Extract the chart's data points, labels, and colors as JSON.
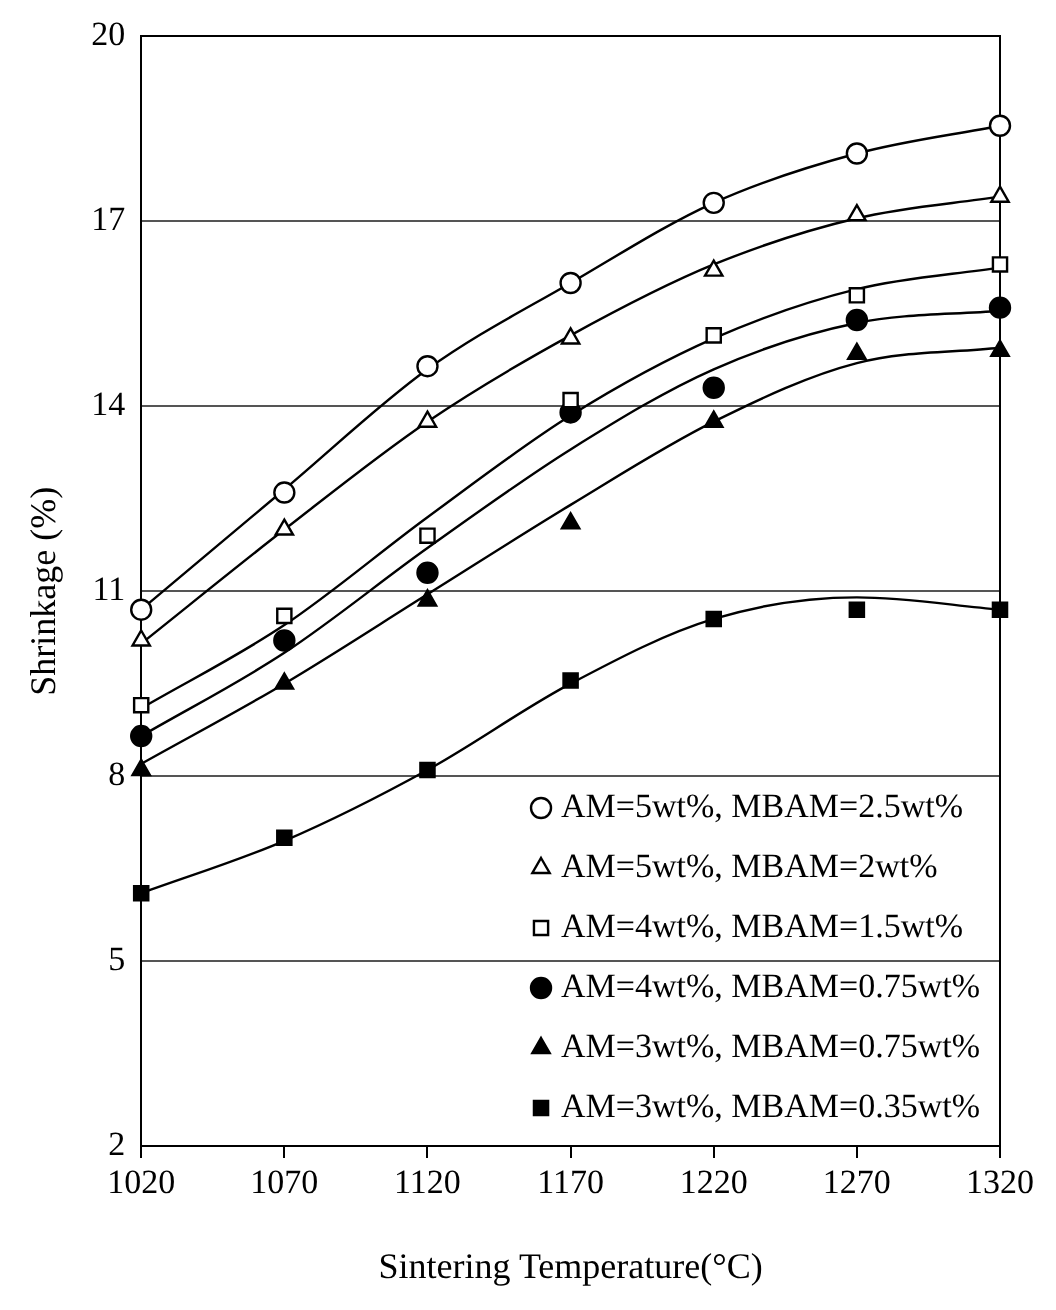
{
  "chart_data": {
    "type": "scatter",
    "xlabel": "Sintering Temperature(°C)",
    "ylabel": "Shrinkage (%)",
    "xlim": [
      1020,
      1320
    ],
    "xticks": [
      1020,
      1070,
      1120,
      1170,
      1220,
      1270,
      1320
    ],
    "ylim": [
      2,
      20
    ],
    "yticks": [
      2,
      5,
      8,
      11,
      14,
      17,
      20
    ],
    "grid": "y",
    "legend": "bottom right",
    "series": [
      {
        "name": "AM=5wt%, MBAM=2.5wt%",
        "marker": "circle",
        "color": "#ffffff",
        "x": [
          1020,
          1070,
          1120,
          1170,
          1220,
          1270,
          1320
        ],
        "values": [
          10.7,
          12.6,
          14.65,
          16.0,
          17.3,
          18.1,
          18.55
        ]
      },
      {
        "name": "AM=5wt%, MBAM=2wt%",
        "marker": "triangle",
        "color": "#ffffff",
        "x": [
          1020,
          1070,
          1120,
          1170,
          1220,
          1270,
          1320
        ],
        "values": [
          10.2,
          12.0,
          13.75,
          15.1,
          16.2,
          17.1,
          17.4
        ]
      },
      {
        "name": "AM=4wt%, MBAM=1.5wt%",
        "marker": "square",
        "color": "#ffffff",
        "x": [
          1020,
          1070,
          1120,
          1170,
          1220,
          1270,
          1320
        ],
        "values": [
          9.15,
          10.6,
          11.9,
          14.1,
          15.15,
          15.8,
          16.3
        ]
      },
      {
        "name": "AM=4wt%, MBAM=0.75wt%",
        "marker": "circle",
        "color": "#000000",
        "x": [
          1020,
          1070,
          1120,
          1170,
          1220,
          1270,
          1320
        ],
        "values": [
          8.65,
          10.2,
          11.3,
          13.9,
          14.3,
          15.4,
          15.6
        ]
      },
      {
        "name": "AM=3wt%, MBAM=0.75wt%",
        "marker": "triangle",
        "color": "#000000",
        "x": [
          1020,
          1070,
          1120,
          1170,
          1220,
          1270,
          1320
        ],
        "values": [
          8.1,
          9.5,
          10.85,
          12.1,
          13.75,
          14.85,
          14.9
        ]
      },
      {
        "name": "AM=3wt%, MBAM=0.35wt%",
        "marker": "square",
        "color": "#000000",
        "x": [
          1020,
          1070,
          1120,
          1170,
          1220,
          1270,
          1320
        ],
        "values": [
          6.1,
          7.0,
          8.1,
          9.55,
          10.55,
          10.7,
          10.7
        ]
      },
      {
        "type": "line",
        "marker": "none",
        "color": "#000000",
        "x": [
          1020,
          1070,
          1120,
          1170,
          1220,
          1270,
          1320
        ],
        "values": [
          10.7,
          12.65,
          14.6,
          16.0,
          17.3,
          18.1,
          18.55
        ]
      },
      {
        "type": "line",
        "marker": "none",
        "color": "#000000",
        "x": [
          1020,
          1070,
          1120,
          1170,
          1220,
          1270,
          1320
        ],
        "values": [
          10.15,
          12.0,
          13.75,
          15.15,
          16.3,
          17.05,
          17.4
        ]
      },
      {
        "type": "line",
        "marker": "none",
        "color": "#000000",
        "x": [
          1020,
          1070,
          1120,
          1170,
          1220,
          1270,
          1320
        ],
        "values": [
          9.1,
          10.45,
          12.2,
          13.85,
          15.1,
          15.9,
          16.25
        ]
      },
      {
        "type": "line",
        "marker": "none",
        "color": "#000000",
        "x": [
          1020,
          1070,
          1120,
          1170,
          1220,
          1270,
          1320
        ],
        "values": [
          8.65,
          10.0,
          11.7,
          13.3,
          14.6,
          15.35,
          15.55
        ]
      },
      {
        "type": "line",
        "marker": "none",
        "color": "#000000",
        "x": [
          1020,
          1070,
          1120,
          1170,
          1220,
          1270,
          1320
        ],
        "values": [
          8.2,
          9.5,
          10.95,
          12.4,
          13.75,
          14.7,
          14.95
        ]
      },
      {
        "type": "line",
        "marker": "none",
        "color": "#000000",
        "x": [
          1020,
          1070,
          1120,
          1170,
          1220,
          1270,
          1320
        ],
        "values": [
          6.1,
          6.95,
          8.1,
          9.5,
          10.55,
          10.9,
          10.7
        ]
      }
    ]
  }
}
